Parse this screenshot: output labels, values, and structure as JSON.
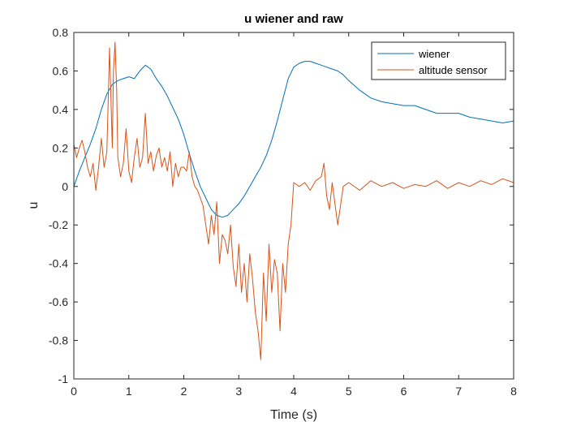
{
  "chart_data": {
    "type": "line",
    "title": "u wiener and raw",
    "xlabel": "Time (s)",
    "ylabel": "u",
    "xlim": [
      0,
      8
    ],
    "ylim": [
      -1,
      0.8
    ],
    "xticks": [
      0,
      1,
      2,
      3,
      4,
      5,
      6,
      7,
      8
    ],
    "yticks": [
      -1,
      -0.8,
      -0.6,
      -0.4,
      -0.2,
      0,
      0.2,
      0.4,
      0.6,
      0.8
    ],
    "ytick_labels": [
      "-1",
      "-0.8",
      "-0.6",
      "-0.4",
      "-0.2",
      "0",
      "0.2",
      "0.4",
      "0.6",
      "0.8"
    ],
    "grid": false,
    "legend_position": "top-right",
    "series": [
      {
        "name": "wiener",
        "color": "#0072BD",
        "x": [
          0,
          0.1,
          0.2,
          0.3,
          0.4,
          0.5,
          0.6,
          0.7,
          0.8,
          0.9,
          1.0,
          1.1,
          1.2,
          1.3,
          1.4,
          1.5,
          1.6,
          1.7,
          1.8,
          1.9,
          2.0,
          2.1,
          2.2,
          2.3,
          2.4,
          2.5,
          2.6,
          2.7,
          2.8,
          2.9,
          3.0,
          3.1,
          3.2,
          3.3,
          3.4,
          3.5,
          3.6,
          3.7,
          3.8,
          3.9,
          4.0,
          4.1,
          4.2,
          4.3,
          4.4,
          4.5,
          4.6,
          4.7,
          4.8,
          4.9,
          5.0,
          5.2,
          5.4,
          5.6,
          5.8,
          6.0,
          6.2,
          6.4,
          6.6,
          6.8,
          7.0,
          7.2,
          7.4,
          7.6,
          7.8,
          8.0
        ],
        "y": [
          0.0,
          0.08,
          0.15,
          0.22,
          0.3,
          0.4,
          0.48,
          0.53,
          0.55,
          0.56,
          0.57,
          0.56,
          0.6,
          0.63,
          0.61,
          0.56,
          0.52,
          0.47,
          0.41,
          0.35,
          0.27,
          0.17,
          0.08,
          0.0,
          -0.06,
          -0.12,
          -0.15,
          -0.16,
          -0.15,
          -0.12,
          -0.09,
          -0.05,
          0.0,
          0.05,
          0.1,
          0.16,
          0.24,
          0.34,
          0.45,
          0.56,
          0.62,
          0.64,
          0.65,
          0.65,
          0.64,
          0.63,
          0.62,
          0.61,
          0.6,
          0.58,
          0.55,
          0.5,
          0.46,
          0.44,
          0.43,
          0.42,
          0.42,
          0.4,
          0.38,
          0.38,
          0.38,
          0.36,
          0.35,
          0.34,
          0.33,
          0.34
        ]
      },
      {
        "name": "altitude sensor",
        "color": "#D95319",
        "x": [
          0,
          0.05,
          0.1,
          0.15,
          0.2,
          0.25,
          0.3,
          0.35,
          0.4,
          0.45,
          0.5,
          0.55,
          0.6,
          0.65,
          0.7,
          0.72,
          0.75,
          0.78,
          0.8,
          0.85,
          0.9,
          0.95,
          1.0,
          1.05,
          1.1,
          1.15,
          1.2,
          1.25,
          1.3,
          1.35,
          1.4,
          1.45,
          1.5,
          1.55,
          1.6,
          1.65,
          1.7,
          1.75,
          1.8,
          1.85,
          1.9,
          1.95,
          2.0,
          2.05,
          2.1,
          2.15,
          2.2,
          2.25,
          2.3,
          2.35,
          2.4,
          2.45,
          2.5,
          2.55,
          2.6,
          2.65,
          2.7,
          2.75,
          2.8,
          2.85,
          2.9,
          2.95,
          3.0,
          3.05,
          3.1,
          3.15,
          3.2,
          3.25,
          3.3,
          3.35,
          3.4,
          3.45,
          3.5,
          3.55,
          3.6,
          3.65,
          3.7,
          3.75,
          3.8,
          3.85,
          3.9,
          3.95,
          4.0,
          4.1,
          4.2,
          4.3,
          4.4,
          4.5,
          4.55,
          4.6,
          4.65,
          4.7,
          4.8,
          4.9,
          5.0,
          5.2,
          5.4,
          5.6,
          5.8,
          6.0,
          6.2,
          6.4,
          6.6,
          6.8,
          7.0,
          7.2,
          7.4,
          7.6,
          7.8,
          8.0
        ],
        "y": [
          0.22,
          0.15,
          0.2,
          0.24,
          0.18,
          0.1,
          0.05,
          0.12,
          -0.02,
          0.1,
          0.25,
          0.1,
          0.18,
          0.72,
          0.2,
          0.6,
          0.75,
          0.5,
          0.15,
          0.05,
          0.12,
          0.3,
          0.08,
          0.02,
          0.15,
          0.25,
          0.1,
          0.15,
          0.38,
          0.12,
          0.18,
          0.08,
          0.16,
          0.2,
          0.1,
          0.15,
          0.08,
          0.18,
          0.0,
          0.12,
          0.05,
          0.1,
          0.1,
          0.08,
          0.18,
          0.05,
          0.0,
          -0.02,
          -0.06,
          -0.1,
          -0.2,
          -0.3,
          -0.15,
          -0.25,
          -0.08,
          -0.4,
          -0.25,
          -0.28,
          -0.35,
          -0.2,
          -0.42,
          -0.52,
          -0.3,
          -0.55,
          -0.4,
          -0.6,
          -0.35,
          -0.48,
          -0.65,
          -0.75,
          -0.9,
          -0.45,
          -0.7,
          -0.3,
          -0.55,
          -0.38,
          -0.45,
          -0.75,
          -0.4,
          -0.55,
          -0.3,
          -0.2,
          0.02,
          0.0,
          0.02,
          -0.02,
          0.03,
          0.05,
          0.12,
          -0.05,
          -0.12,
          0.02,
          -0.2,
          0.0,
          0.02,
          -0.02,
          0.03,
          0.0,
          0.02,
          -0.01,
          0.01,
          0.0,
          0.03,
          -0.01,
          0.02,
          0.0,
          0.03,
          0.01,
          0.04,
          0.02
        ]
      }
    ]
  }
}
